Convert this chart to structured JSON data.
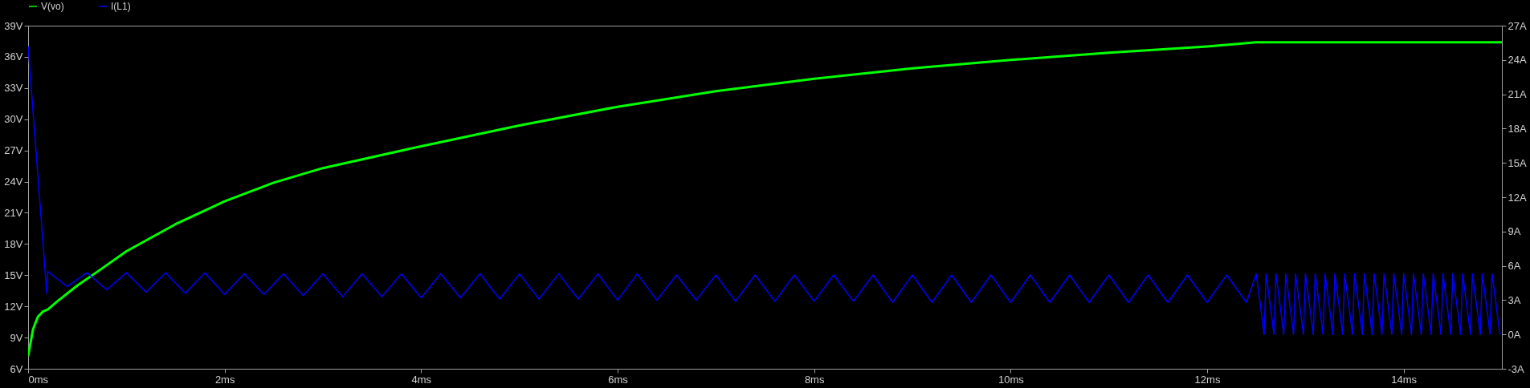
{
  "chart_data": {
    "type": "line",
    "xlim": [
      0,
      15
    ],
    "xticks": [
      {
        "value": 0,
        "label": "0ms"
      },
      {
        "value": 2,
        "label": "2ms"
      },
      {
        "value": 4,
        "label": "4ms"
      },
      {
        "value": 6,
        "label": "6ms"
      },
      {
        "value": 8,
        "label": "8ms"
      },
      {
        "value": 10,
        "label": "10ms"
      },
      {
        "value": 12,
        "label": "12ms"
      },
      {
        "value": 14,
        "label": "14ms"
      }
    ],
    "ylim": [
      6,
      39
    ],
    "yticks": [
      {
        "value": 6,
        "label": "6V"
      },
      {
        "value": 9,
        "label": "9V"
      },
      {
        "value": 12,
        "label": "12V"
      },
      {
        "value": 15,
        "label": "15V"
      },
      {
        "value": 18,
        "label": "18V"
      },
      {
        "value": 21,
        "label": "21V"
      },
      {
        "value": 24,
        "label": "24V"
      },
      {
        "value": 27,
        "label": "27V"
      },
      {
        "value": 30,
        "label": "30V"
      },
      {
        "value": 33,
        "label": "33V"
      },
      {
        "value": 36,
        "label": "36V"
      },
      {
        "value": 39,
        "label": "39V"
      }
    ],
    "y2lim": [
      -3,
      27
    ],
    "y2ticks": [
      {
        "value": -3,
        "label": "-3A"
      },
      {
        "value": 0,
        "label": "0A"
      },
      {
        "value": 3,
        "label": "3A"
      },
      {
        "value": 6,
        "label": "6A"
      },
      {
        "value": 9,
        "label": "9A"
      },
      {
        "value": 12,
        "label": "12A"
      },
      {
        "value": 15,
        "label": "15A"
      },
      {
        "value": 18,
        "label": "18A"
      },
      {
        "value": 21,
        "label": "21A"
      },
      {
        "value": 24,
        "label": "24A"
      },
      {
        "value": 27,
        "label": "27A"
      }
    ],
    "legend": "top",
    "series": [
      {
        "name": "V(vo)",
        "color": "#00ff00",
        "x": [
          0,
          0.05,
          0.1,
          0.15,
          0.2,
          0.3,
          0.5,
          0.7,
          1,
          1.5,
          2,
          2.5,
          3,
          4,
          5,
          6,
          7,
          8,
          9,
          10,
          11,
          12,
          12.5,
          13,
          14,
          15
        ],
        "values": [
          7.2,
          9.8,
          11.0,
          11.5,
          11.7,
          12.5,
          14.0,
          15.3,
          17.3,
          19.9,
          22.1,
          23.9,
          25.3,
          27.4,
          29.4,
          31.2,
          32.7,
          33.9,
          34.9,
          35.7,
          36.4,
          37.0,
          37.4,
          37.4,
          37.4,
          37.4
        ]
      },
      {
        "name": "I(L1)",
        "color": "#0000ff",
        "axis": "y2",
        "x": [
          0,
          0.19,
          0.2,
          0.4,
          0.6,
          0.8,
          1.0,
          1.2,
          1.4,
          1.6,
          1.8,
          2.0,
          2.2,
          2.4,
          2.6,
          2.8,
          3.0,
          3.2,
          3.4,
          3.6,
          3.8,
          4.0,
          4.2,
          4.4,
          4.6,
          4.8,
          5.0,
          5.2,
          5.4,
          5.6,
          5.8,
          6.0,
          6.2,
          6.4,
          6.6,
          6.8,
          7.0,
          7.2,
          7.4,
          7.6,
          7.8,
          8.0,
          8.2,
          8.4,
          8.6,
          8.8,
          9.0,
          9.2,
          9.4,
          9.6,
          9.8,
          10.0,
          10.2,
          10.4,
          10.6,
          10.8,
          11.0,
          11.2,
          11.4,
          11.6,
          11.8,
          12.0,
          12.2,
          12.4,
          12.5,
          12.54,
          12.58,
          12.6,
          12.64,
          12.68,
          12.7,
          12.74,
          12.78,
          12.8,
          12.84,
          12.88,
          12.9,
          12.94,
          12.98,
          13,
          13.04,
          13.08,
          13.1,
          13.14,
          13.18,
          13.2,
          13.24,
          13.28,
          13.3,
          13.34,
          13.38,
          13.4,
          13.44,
          13.48,
          13.5,
          13.54,
          13.58,
          13.6,
          13.64,
          13.68,
          13.7,
          13.74,
          13.78,
          13.8,
          13.84,
          13.88,
          13.9,
          13.94,
          13.98,
          14,
          14.04,
          14.08,
          14.1,
          14.14,
          14.18,
          14.2,
          14.24,
          14.28,
          14.3,
          14.34,
          14.38,
          14.4,
          14.44,
          14.48,
          14.5,
          14.54,
          14.58,
          14.6,
          14.64,
          14.68,
          14.7,
          14.74,
          14.78,
          14.8,
          14.84,
          14.88,
          14.9,
          14.94,
          14.98
        ],
        "values": [
          25.2,
          3.6,
          5.5,
          4.2,
          5.4,
          3.9,
          5.4,
          3.7,
          5.4,
          3.6,
          5.4,
          3.5,
          5.3,
          3.5,
          5.3,
          3.4,
          5.3,
          3.3,
          5.3,
          3.3,
          5.3,
          3.2,
          5.3,
          3.2,
          5.3,
          3.1,
          5.3,
          3.1,
          5.3,
          3.1,
          5.3,
          3.0,
          5.3,
          3.0,
          5.2,
          3.0,
          5.2,
          2.9,
          5.2,
          2.9,
          5.2,
          2.9,
          5.2,
          2.9,
          5.2,
          2.8,
          5.2,
          2.8,
          5.2,
          2.8,
          5.2,
          2.8,
          5.2,
          2.8,
          5.2,
          2.8,
          5.2,
          2.8,
          5.2,
          2.8,
          5.2,
          2.8,
          5.2,
          2.8,
          5.3,
          2.7,
          0,
          5.3,
          2.7,
          0,
          5.3,
          2.7,
          0,
          5.3,
          2.7,
          0,
          5.3,
          2.7,
          0,
          5.3,
          2.7,
          0,
          5.3,
          2.7,
          0,
          5.3,
          2.7,
          0,
          5.3,
          2.7,
          0,
          5.3,
          2.7,
          0,
          5.3,
          2.7,
          0,
          5.3,
          2.7,
          0,
          5.3,
          2.7,
          0,
          5.3,
          2.7,
          0,
          5.3,
          2.7,
          0,
          5.3,
          2.7,
          0,
          5.3,
          2.7,
          0,
          5.3,
          2.7,
          0,
          5.3,
          2.7,
          0,
          5.3,
          2.7,
          0,
          5.3,
          2.7,
          0,
          5.3,
          2.7,
          0,
          5.3,
          2.7,
          0,
          5.3,
          2.7,
          0,
          5.3,
          2.7,
          0
        ]
      }
    ]
  }
}
